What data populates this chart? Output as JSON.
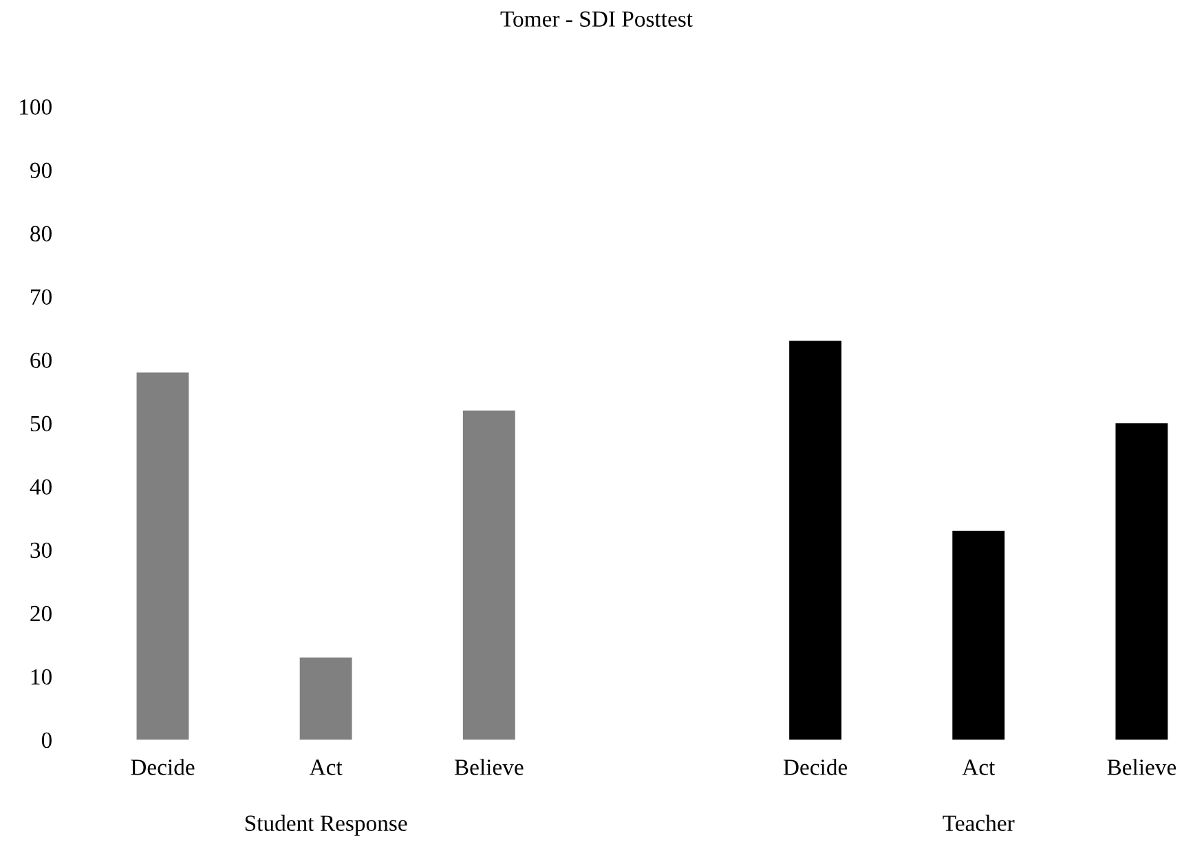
{
  "chart_data": {
    "type": "bar",
    "title": "Tomer - SDI Posttest",
    "categories": [
      "Decide",
      "Act",
      "Believe",
      null,
      "Decide",
      "Act",
      "Believe"
    ],
    "series": [
      {
        "color": "#808080",
        "values": [
          58,
          13,
          52,
          null,
          null,
          null,
          null
        ]
      },
      {
        "color": "#000000",
        "values": [
          null,
          null,
          null,
          null,
          63,
          33,
          50
        ]
      }
    ],
    "annotations": [
      "Student Response",
      "Teacher"
    ],
    "ylim": [
      0,
      100
    ],
    "yticks": [
      0,
      10,
      20,
      30,
      40,
      50,
      60,
      70,
      80,
      90,
      100
    ],
    "grid": false,
    "legend": false
  }
}
